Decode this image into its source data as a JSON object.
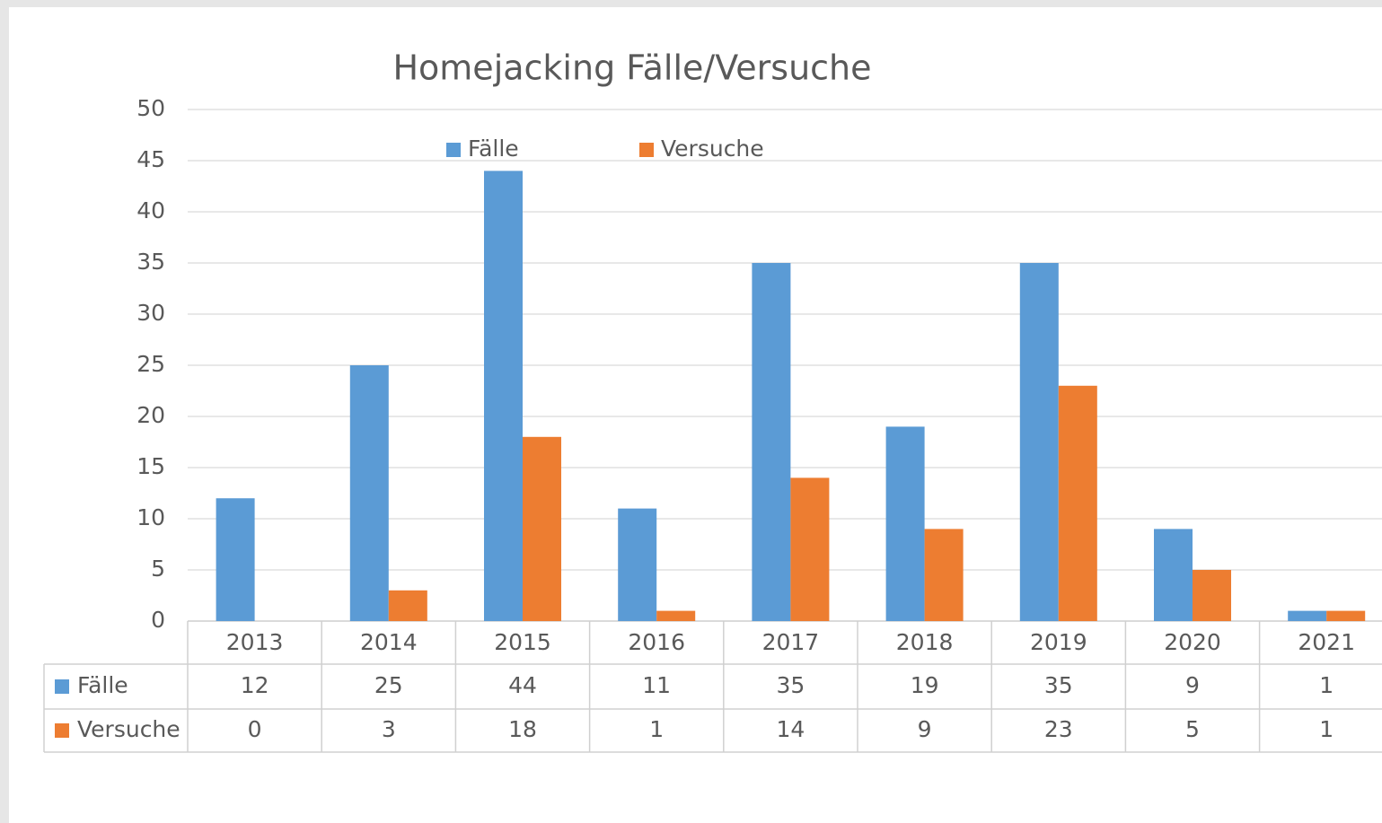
{
  "chart_data": {
    "type": "bar",
    "title": "Homejacking Fälle/Versuche",
    "categories": [
      "2013",
      "2014",
      "2015",
      "2016",
      "2017",
      "2018",
      "2019",
      "2020",
      "2021"
    ],
    "series": [
      {
        "name": "Fälle",
        "color": "#5b9bd5",
        "values": [
          12,
          25,
          44,
          11,
          35,
          19,
          35,
          9,
          1
        ]
      },
      {
        "name": "Versuche",
        "color": "#ed7d31",
        "values": [
          0,
          3,
          18,
          1,
          14,
          9,
          23,
          5,
          1
        ]
      }
    ],
    "ylim": [
      0,
      50
    ],
    "yticks": [
      0,
      5,
      10,
      15,
      20,
      25,
      30,
      35,
      40,
      45,
      50
    ],
    "grid": true,
    "legend": "top"
  }
}
